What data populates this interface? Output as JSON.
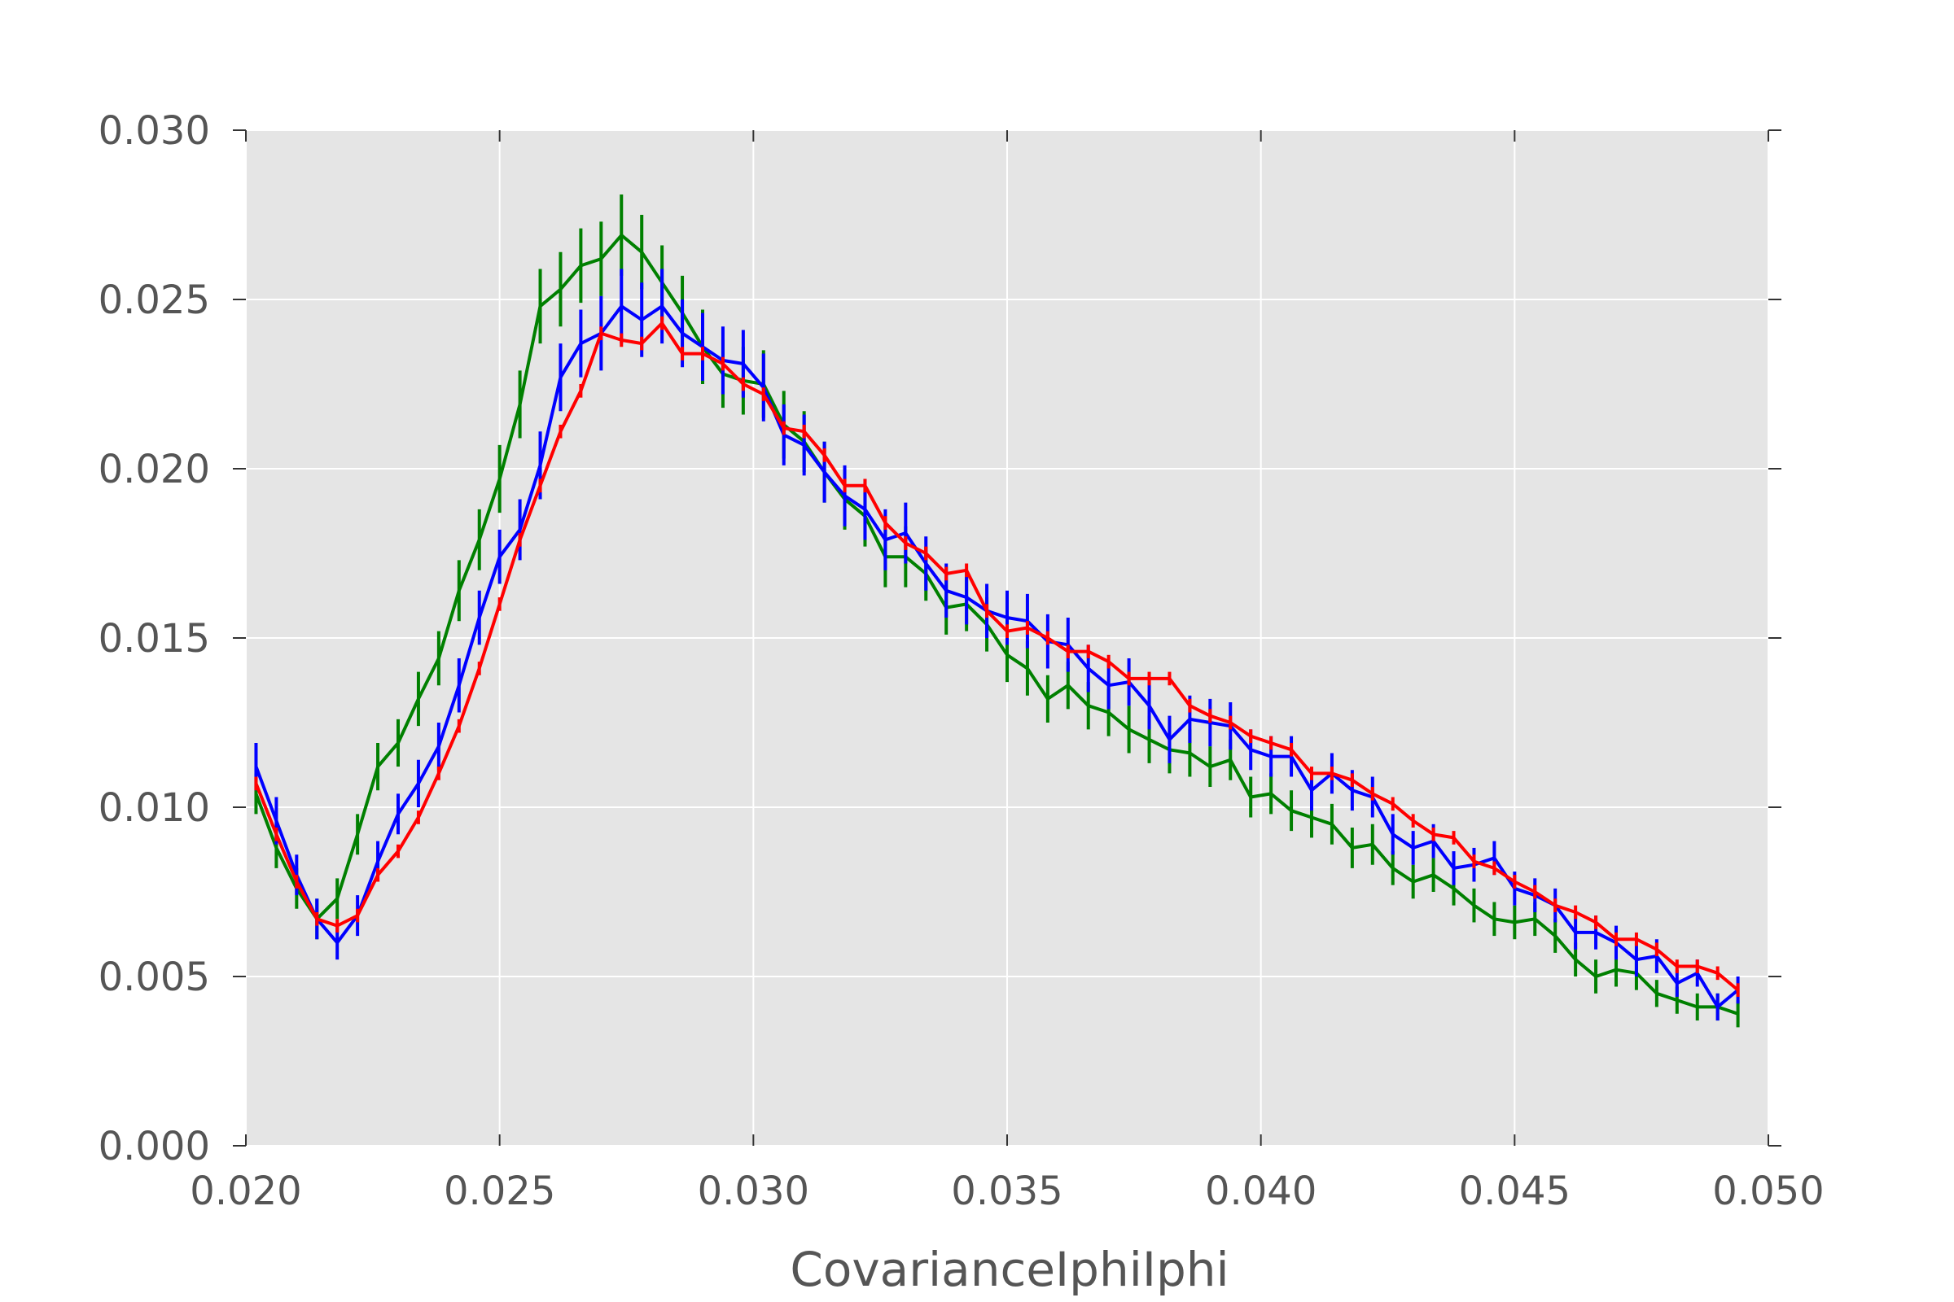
{
  "chart_data": {
    "type": "line",
    "title": "",
    "xlabel": "CovarianceIphiIphi",
    "ylabel": "",
    "xlim": [
      0.02,
      0.05
    ],
    "ylim": [
      0.0,
      0.03
    ],
    "grid": true,
    "legend": "none",
    "background": "#e5e5e5",
    "gridColor": "#ffffff",
    "x_ticks": [
      0.02,
      0.025,
      0.03,
      0.035,
      0.04,
      0.045,
      0.05
    ],
    "x_tick_labels": [
      "0.020",
      "0.025",
      "0.030",
      "0.035",
      "0.040",
      "0.045",
      "0.050"
    ],
    "y_ticks": [
      0.0,
      0.005,
      0.01,
      0.015,
      0.02,
      0.025,
      0.03
    ],
    "y_tick_labels": [
      "0.000",
      "0.005",
      "0.010",
      "0.015",
      "0.020",
      "0.025",
      "0.030"
    ],
    "x": [
      0.0202,
      0.0206,
      0.021,
      0.0214,
      0.0218,
      0.0222,
      0.0226,
      0.023,
      0.0234,
      0.0238,
      0.0242,
      0.0246,
      0.025,
      0.0254,
      0.0258,
      0.0262,
      0.0266,
      0.027,
      0.0274,
      0.0278,
      0.0282,
      0.0286,
      0.029,
      0.0294,
      0.0298,
      0.0302,
      0.0306,
      0.031,
      0.0314,
      0.0318,
      0.0322,
      0.0326,
      0.033,
      0.0334,
      0.0338,
      0.0342,
      0.0346,
      0.035,
      0.0354,
      0.0358,
      0.0362,
      0.0366,
      0.037,
      0.0374,
      0.0378,
      0.0382,
      0.0386,
      0.039,
      0.0394,
      0.0398,
      0.0402,
      0.0406,
      0.041,
      0.0414,
      0.0418,
      0.0422,
      0.0426,
      0.043,
      0.0434,
      0.0438,
      0.0442,
      0.0446,
      0.045,
      0.0454,
      0.0458,
      0.0462,
      0.0466,
      0.047,
      0.0474,
      0.0478,
      0.0482,
      0.0486,
      0.049,
      0.0494
    ],
    "series": [
      {
        "color": "#008000",
        "values": [
          0.0104,
          0.0088,
          0.0076,
          0.0067,
          0.0073,
          0.0092,
          0.0112,
          0.0119,
          0.0132,
          0.0144,
          0.0164,
          0.0179,
          0.0197,
          0.0219,
          0.0248,
          0.0253,
          0.026,
          0.0262,
          0.0269,
          0.0264,
          0.0255,
          0.0246,
          0.0236,
          0.0228,
          0.0226,
          0.0225,
          0.0213,
          0.0208,
          0.0199,
          0.0191,
          0.0186,
          0.0174,
          0.0174,
          0.0169,
          0.0159,
          0.016,
          0.0154,
          0.0145,
          0.0141,
          0.0132,
          0.0136,
          0.013,
          0.0128,
          0.0123,
          0.012,
          0.0117,
          0.0116,
          0.0112,
          0.0114,
          0.0103,
          0.0104,
          0.0099,
          0.0097,
          0.0095,
          0.0088,
          0.0089,
          0.0082,
          0.0078,
          0.008,
          0.0076,
          0.0071,
          0.0067,
          0.0066,
          0.0067,
          0.0062,
          0.0055,
          0.005,
          0.0052,
          0.0051,
          0.0045,
          0.0043,
          0.0041,
          0.0041,
          0.0039
        ],
        "errors": [
          0.0006,
          0.0006,
          0.0006,
          0.0006,
          0.0006,
          0.0006,
          0.0007,
          0.0007,
          0.0008,
          0.0008,
          0.0009,
          0.0009,
          0.001,
          0.001,
          0.0011,
          0.0011,
          0.0011,
          0.0011,
          0.0012,
          0.0011,
          0.0011,
          0.0011,
          0.0011,
          0.001,
          0.001,
          0.001,
          0.001,
          0.0009,
          0.0009,
          0.0009,
          0.0009,
          0.0009,
          0.0009,
          0.0008,
          0.0008,
          0.0008,
          0.0008,
          0.0008,
          0.0008,
          0.0007,
          0.0007,
          0.0007,
          0.0007,
          0.0007,
          0.0007,
          0.0007,
          0.0007,
          0.0006,
          0.0006,
          0.0006,
          0.0006,
          0.0006,
          0.0006,
          0.0006,
          0.0006,
          0.0006,
          0.0005,
          0.0005,
          0.0005,
          0.0005,
          0.0005,
          0.0005,
          0.0005,
          0.0005,
          0.0005,
          0.0005,
          0.0005,
          0.0005,
          0.0005,
          0.0004,
          0.0004,
          0.0004,
          0.0004,
          0.0004
        ]
      },
      {
        "color": "#0000ff",
        "values": [
          0.0112,
          0.0096,
          0.008,
          0.0067,
          0.006,
          0.0068,
          0.0084,
          0.0098,
          0.0107,
          0.0118,
          0.0136,
          0.0156,
          0.0174,
          0.0182,
          0.0201,
          0.0227,
          0.0237,
          0.024,
          0.0248,
          0.0244,
          0.0248,
          0.024,
          0.0236,
          0.0232,
          0.0231,
          0.0224,
          0.021,
          0.0207,
          0.0199,
          0.0192,
          0.0188,
          0.0179,
          0.0181,
          0.0172,
          0.0164,
          0.0162,
          0.0158,
          0.0156,
          0.0155,
          0.0149,
          0.0148,
          0.0141,
          0.0136,
          0.0137,
          0.013,
          0.012,
          0.0126,
          0.0125,
          0.0124,
          0.0117,
          0.0115,
          0.0115,
          0.0105,
          0.011,
          0.0105,
          0.0103,
          0.0092,
          0.0088,
          0.009,
          0.0082,
          0.0083,
          0.0085,
          0.0076,
          0.0074,
          0.0071,
          0.0063,
          0.0063,
          0.006,
          0.0055,
          0.0056,
          0.0048,
          0.0051,
          0.0041,
          0.0046
        ],
        "errors": [
          0.0007,
          0.0007,
          0.0006,
          0.0006,
          0.0005,
          0.0006,
          0.0006,
          0.0006,
          0.0007,
          0.0007,
          0.0008,
          0.0008,
          0.0008,
          0.0009,
          0.001,
          0.001,
          0.001,
          0.0011,
          0.0011,
          0.0011,
          0.0011,
          0.001,
          0.001,
          0.001,
          0.001,
          0.001,
          0.0009,
          0.0009,
          0.0009,
          0.0009,
          0.0009,
          0.0009,
          0.0009,
          0.0008,
          0.0008,
          0.0008,
          0.0008,
          0.0008,
          0.0008,
          0.0008,
          0.0008,
          0.0007,
          0.0007,
          0.0007,
          0.0007,
          0.0007,
          0.0007,
          0.0007,
          0.0007,
          0.0006,
          0.0006,
          0.0006,
          0.0006,
          0.0006,
          0.0006,
          0.0006,
          0.0006,
          0.0005,
          0.0005,
          0.0005,
          0.0005,
          0.0005,
          0.0005,
          0.0005,
          0.0005,
          0.0005,
          0.0005,
          0.0005,
          0.0005,
          0.0005,
          0.0004,
          0.0004,
          0.0004,
          0.0004
        ]
      },
      {
        "color": "#ff0000",
        "values": [
          0.0107,
          0.0092,
          0.0078,
          0.0067,
          0.0065,
          0.0068,
          0.008,
          0.0087,
          0.0097,
          0.011,
          0.0124,
          0.0141,
          0.016,
          0.0179,
          0.0195,
          0.0211,
          0.0223,
          0.024,
          0.0238,
          0.0237,
          0.0243,
          0.0234,
          0.0234,
          0.0231,
          0.0225,
          0.0222,
          0.0212,
          0.0211,
          0.0204,
          0.0195,
          0.0195,
          0.0184,
          0.0178,
          0.0175,
          0.0169,
          0.017,
          0.0158,
          0.0152,
          0.0153,
          0.015,
          0.0146,
          0.0146,
          0.0143,
          0.0138,
          0.0138,
          0.0138,
          0.013,
          0.0127,
          0.0125,
          0.0121,
          0.0119,
          0.0117,
          0.011,
          0.011,
          0.0108,
          0.0104,
          0.0101,
          0.0096,
          0.0092,
          0.0091,
          0.0084,
          0.0082,
          0.0078,
          0.0075,
          0.0071,
          0.0069,
          0.0066,
          0.0061,
          0.0061,
          0.0058,
          0.0053,
          0.0053,
          0.0051,
          0.0046
        ],
        "errors": [
          0.0002,
          0.0002,
          0.0002,
          0.0002,
          0.0002,
          0.0002,
          0.0002,
          0.0002,
          0.0002,
          0.0002,
          0.0002,
          0.0002,
          0.0002,
          0.0002,
          0.0002,
          0.0002,
          0.0002,
          0.0002,
          0.0002,
          0.0002,
          0.0002,
          0.0002,
          0.0002,
          0.0002,
          0.0002,
          0.0002,
          0.0002,
          0.0002,
          0.0002,
          0.0002,
          0.0002,
          0.0002,
          0.0002,
          0.0002,
          0.0002,
          0.0002,
          0.0002,
          0.0002,
          0.0002,
          0.0002,
          0.0002,
          0.0002,
          0.0002,
          0.0002,
          0.0002,
          0.0002,
          0.0002,
          0.0002,
          0.0002,
          0.0002,
          0.0002,
          0.0002,
          0.0002,
          0.0002,
          0.0002,
          0.0002,
          0.0002,
          0.0002,
          0.0002,
          0.0002,
          0.0002,
          0.0002,
          0.0002,
          0.0002,
          0.0002,
          0.0002,
          0.0002,
          0.0002,
          0.0002,
          0.0002,
          0.0002,
          0.0002,
          0.0002,
          0.0002
        ]
      }
    ]
  }
}
